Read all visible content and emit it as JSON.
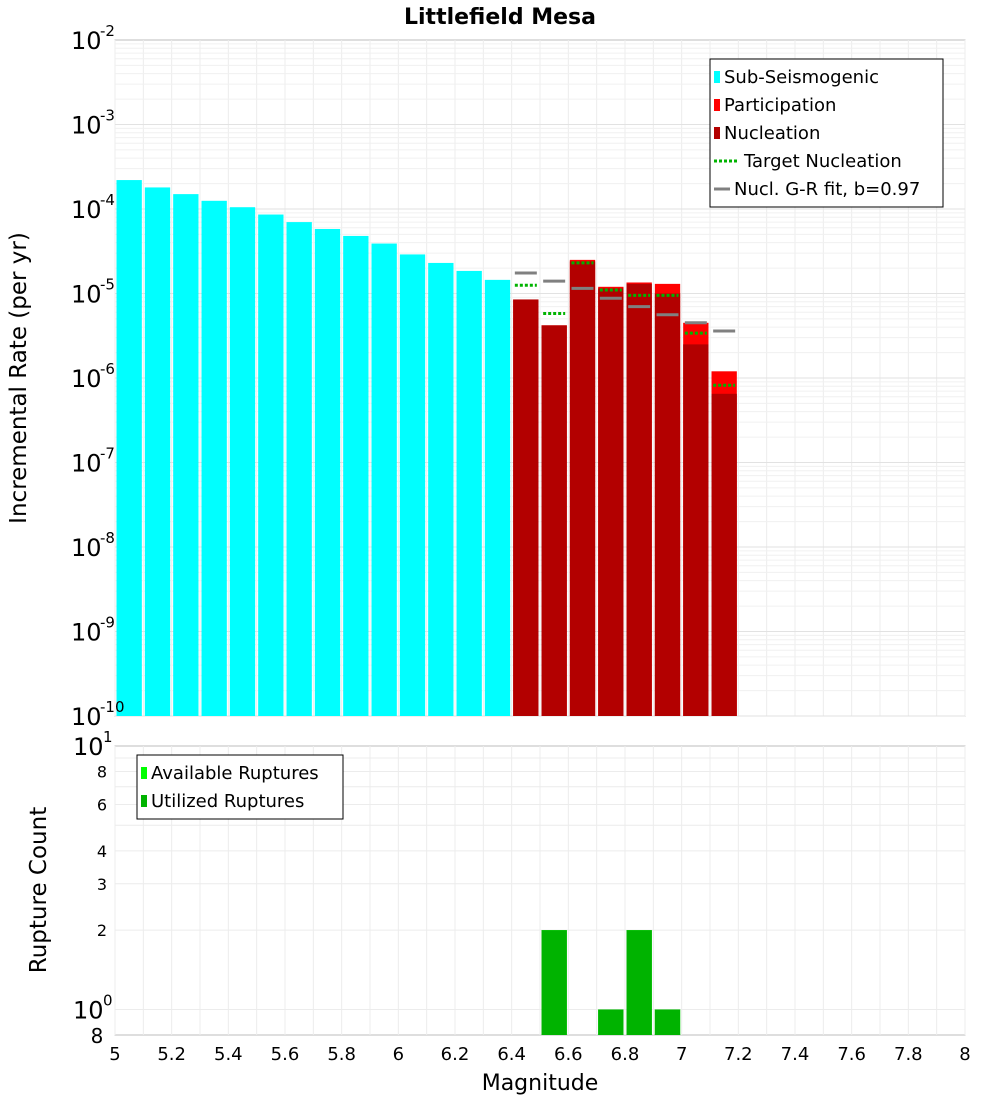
{
  "chart_data": [
    {
      "type": "bar",
      "title": "Littlefield Mesa",
      "xlabel": "",
      "ylabel": "Incremental Rate (per yr)",
      "xlim": [
        5,
        8
      ],
      "ylim": [
        1e-10,
        0.01
      ],
      "yscale": "log",
      "ytick_bases": [
        "10",
        "10",
        "10",
        "10",
        "10",
        "10",
        "10",
        "10",
        "10"
      ],
      "ytick_exps": [
        "-10",
        "-9",
        "-8",
        "-7",
        "-6",
        "-5",
        "-4",
        "-3",
        "-2"
      ],
      "ytick_values": [
        1e-10,
        1e-09,
        1e-08,
        1e-07,
        1e-06,
        1e-05,
        0.0001,
        0.001,
        0.01
      ],
      "legend": [
        {
          "label": "Sub-Seismogenic",
          "color": "#00ffff",
          "kind": "bar"
        },
        {
          "label": "Participation",
          "color": "#ff0000",
          "kind": "bar"
        },
        {
          "label": "Nucleation",
          "color": "#b30000",
          "kind": "bar"
        },
        {
          "label": "Target Nucleation",
          "color": "#00b300",
          "kind": "dotted"
        },
        {
          "label": "Nucl. G-R fit, b=0.97",
          "color": "#808080",
          "kind": "line"
        }
      ],
      "series": [
        {
          "name": "Sub-Seismogenic",
          "color": "#00ffff",
          "x": [
            5.05,
            5.15,
            5.25,
            5.35,
            5.45,
            5.55,
            5.65,
            5.75,
            5.85,
            5.95,
            6.05,
            6.15,
            6.25,
            6.35
          ],
          "values": [
            0.00022,
            0.00018,
            0.00015,
            0.000125,
            0.000105,
            8.6e-05,
            7e-05,
            5.8e-05,
            4.8e-05,
            3.9e-05,
            2.9e-05,
            2.3e-05,
            1.85e-05,
            1.45e-05
          ]
        },
        {
          "name": "Participation",
          "color": "#ff0000",
          "x": [
            6.45,
            6.55,
            6.65,
            6.75,
            6.85,
            6.95,
            7.05,
            7.15
          ],
          "values": [
            8.5e-06,
            4.2e-06,
            2.5e-05,
            1.2e-05,
            1.35e-05,
            1.3e-05,
            4.5e-06,
            1.2e-06
          ]
        },
        {
          "name": "Nucleation",
          "color": "#b30000",
          "x": [
            6.45,
            6.55,
            6.65,
            6.75,
            6.85,
            6.95,
            7.05,
            7.15
          ],
          "values": [
            8.5e-06,
            4.2e-06,
            2.4e-05,
            1.15e-05,
            1.3e-05,
            1e-05,
            2.5e-06,
            6.5e-07
          ]
        },
        {
          "name": "Target Nucleation",
          "color": "#00b300",
          "x": [
            6.45,
            6.55,
            6.65,
            6.75,
            6.85,
            6.95,
            7.05,
            7.15
          ],
          "values": [
            1.25e-05,
            5.8e-06,
            2.3e-05,
            1.1e-05,
            9.5e-06,
            9.5e-06,
            3.4e-06,
            8.2e-07
          ]
        },
        {
          "name": "Nucl. G-R fit, b=0.97",
          "color": "#808080",
          "x": [
            6.45,
            6.55,
            6.65,
            6.75,
            6.85,
            6.95,
            7.05,
            7.15
          ],
          "values": [
            1.75e-05,
            1.4e-05,
            1.15e-05,
            8.8e-06,
            7e-06,
            5.6e-06,
            4.5e-06,
            3.6e-06
          ]
        }
      ]
    },
    {
      "type": "bar",
      "title": "",
      "xlabel": "Magnitude",
      "ylabel": "Rupture Count",
      "xlim": [
        5,
        8
      ],
      "ylim": [
        0.8,
        10
      ],
      "yscale": "log",
      "xticks": [
        "5",
        "5.2",
        "5.4",
        "5.6",
        "5.8",
        "6",
        "6.2",
        "6.4",
        "6.6",
        "6.8",
        "7",
        "7.2",
        "7.4",
        "7.6",
        "7.8",
        "8"
      ],
      "xtick_values": [
        5,
        5.2,
        5.4,
        5.6,
        5.8,
        6,
        6.2,
        6.4,
        6.6,
        6.8,
        7,
        7.2,
        7.4,
        7.6,
        7.8,
        8
      ],
      "ytick_bases": [
        "10",
        "10"
      ],
      "ytick_exps": [
        "0",
        "1"
      ],
      "ytick_values": [
        1,
        10
      ],
      "yminor_labels": [
        "8",
        "2",
        "3",
        "4",
        "6",
        "8"
      ],
      "yminor_values": [
        0.8,
        2,
        3,
        4,
        6,
        8
      ],
      "legend": [
        {
          "label": "Available Ruptures",
          "color": "#00ff00",
          "kind": "bar"
        },
        {
          "label": "Utilized Ruptures",
          "color": "#00b300",
          "kind": "bar"
        }
      ],
      "series": [
        {
          "name": "Available Ruptures",
          "color": "#00ff00",
          "x": [
            6.55,
            6.75,
            6.85,
            6.95
          ],
          "values": [
            2,
            1,
            2,
            1
          ]
        },
        {
          "name": "Utilized Ruptures",
          "color": "#00b300",
          "x": [
            6.55,
            6.75,
            6.85,
            6.95
          ],
          "values": [
            2,
            1,
            2,
            1
          ]
        }
      ]
    }
  ]
}
